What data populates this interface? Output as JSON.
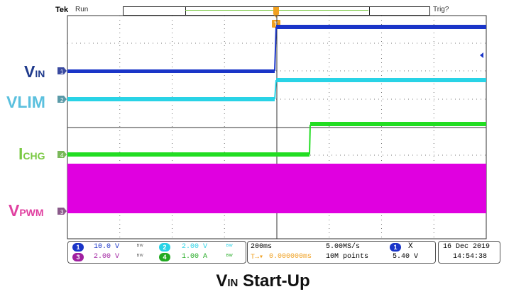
{
  "header": {
    "brand": "Tek",
    "run_state": "Run",
    "trigger_status": "Trig?"
  },
  "channel_labels": {
    "vin": {
      "main": "V",
      "sub": "IN",
      "color": "#1f3a8c"
    },
    "vlim": {
      "main": "VLIM",
      "sub": "",
      "color": "#5bc0de"
    },
    "ichg": {
      "main": "I",
      "sub": "CHG",
      "color": "#7ac943"
    },
    "vpwm": {
      "main": "V",
      "sub": "PWM",
      "color": "#e040a0"
    }
  },
  "channel_markers": {
    "ch1": "1",
    "ch2": "2",
    "ch3": "3",
    "ch4": "4"
  },
  "trigger_marker": "T",
  "readout": {
    "ch1": {
      "num": "1",
      "scale": "10.0 V",
      "color": "#1a35c8"
    },
    "ch2": {
      "num": "2",
      "scale": "2.00 V",
      "color": "#29d3e6"
    },
    "ch3": {
      "num": "3",
      "scale": "2.00 V",
      "color": "#a020a0"
    },
    "ch4": {
      "num": "4",
      "scale": "1.00 A",
      "color": "#22c322"
    },
    "timebase": "200ms",
    "sample_rate": "5.00MS/s",
    "trigger_pos": "0.000000ms",
    "record_length": "10M points",
    "trigger_source": "1",
    "trigger_coupling": "X",
    "trigger_level": "5.40 V",
    "date": "16 Dec  2019",
    "time": "14:54:38"
  },
  "colors": {
    "ch1": "#1a35c8",
    "ch2": "#29d3e6",
    "ch3": "#e000e0",
    "ch4": "#22dd22",
    "grid": "#333333"
  },
  "caption": {
    "main": "V",
    "sub": "IN",
    "rest": " Start-Up"
  }
}
